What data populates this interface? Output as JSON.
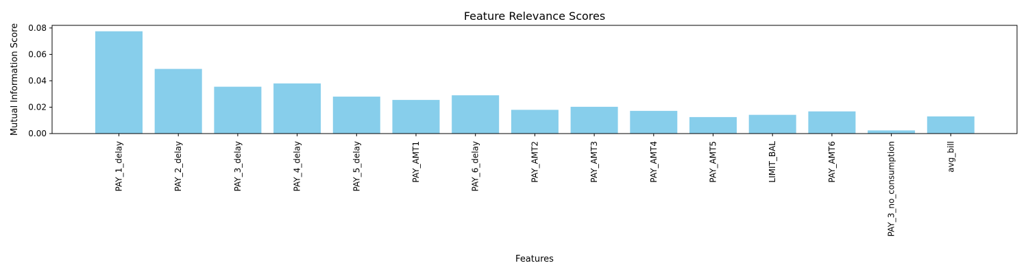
{
  "chart_data": {
    "type": "bar",
    "title": "Feature Relevance Scores",
    "xlabel": "Features",
    "ylabel": "Mutual Information Score",
    "categories": [
      "PAY_1_delay",
      "PAY_2_delay",
      "PAY_3_delay",
      "PAY_4_delay",
      "PAY_5_delay",
      "PAY_AMT1",
      "PAY_6_delay",
      "PAY_AMT2",
      "PAY_AMT3",
      "PAY_AMT4",
      "PAY_AMT5",
      "LIMIT_BAL",
      "PAY_AMT6",
      "PAY_3_no_consumption",
      "avg_bill"
    ],
    "values": [
      0.0775,
      0.049,
      0.0355,
      0.038,
      0.028,
      0.0255,
      0.029,
      0.018,
      0.0203,
      0.0172,
      0.0125,
      0.0142,
      0.0168,
      0.0024,
      0.013
    ],
    "ylim": [
      0,
      0.082
    ],
    "yticks": [
      0.0,
      0.02,
      0.04,
      0.06,
      0.08
    ],
    "ytick_labels": [
      "0.00",
      "0.02",
      "0.04",
      "0.06",
      "0.08"
    ],
    "bar_color": "#87ceeb",
    "grid": false,
    "legend": "none"
  }
}
